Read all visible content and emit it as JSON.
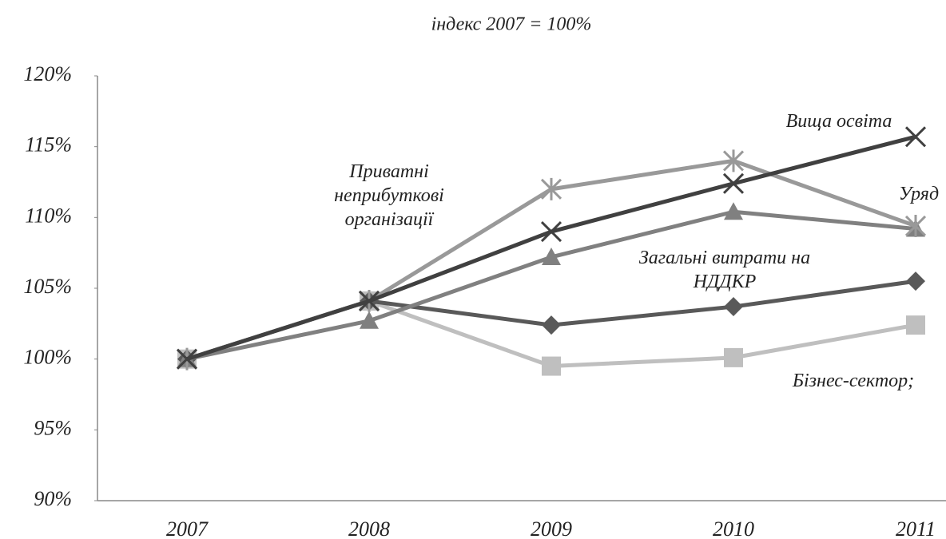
{
  "chart_data": {
    "type": "line",
    "title": "індекс 2007 = 100%",
    "categories": [
      "2007",
      "2008",
      "2009",
      "2010",
      "2011"
    ],
    "series": [
      {
        "name": "Вища освіта",
        "color": "#404040",
        "marker": "x",
        "values": [
          100,
          104.1,
          109.0,
          112.4,
          115.7
        ]
      },
      {
        "name": "Уряд",
        "color": "#999999",
        "marker": "star",
        "values": [
          100,
          104.1,
          112.0,
          114.0,
          109.4
        ]
      },
      {
        "name": "Приватні неприбуткові організації",
        "color": "#808080",
        "marker": "triangle",
        "values": [
          100,
          102.7,
          107.2,
          110.4,
          109.2
        ]
      },
      {
        "name": "Загальні витрати на НДДКР",
        "color": "#595959",
        "marker": "diamond",
        "values": [
          100,
          104.1,
          102.4,
          103.7,
          105.5
        ]
      },
      {
        "name": "Бізнес-сектор;",
        "color": "#bfbfbf",
        "marker": "square",
        "values": [
          100,
          104.1,
          99.5,
          100.1,
          102.4
        ]
      }
    ],
    "ylim": [
      90,
      120
    ],
    "yticks": [
      {
        "value": 90,
        "label": "90%"
      },
      {
        "value": 95,
        "label": "95%"
      },
      {
        "value": 100,
        "label": "100%"
      },
      {
        "value": 105,
        "label": "105%"
      },
      {
        "value": 110,
        "label": "110%"
      },
      {
        "value": 115,
        "label": "115%"
      },
      {
        "value": 120,
        "label": "120%"
      }
    ],
    "grid": false
  }
}
